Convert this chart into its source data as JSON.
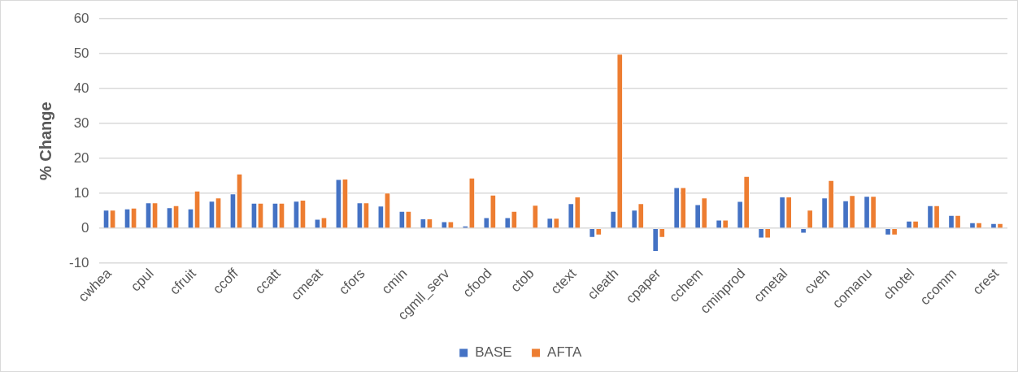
{
  "chart_data": {
    "type": "bar",
    "ylabel": "% Change",
    "categories": [
      "cwhea",
      null,
      "cpul",
      null,
      "cfruit",
      null,
      "ccoff",
      null,
      "ccatt",
      null,
      "cmeat",
      null,
      "cfors",
      null,
      "cmin",
      null,
      "cgmll_serv",
      null,
      "cfood",
      null,
      "ctob",
      null,
      "ctext",
      null,
      "cleath",
      null,
      "cpaper",
      null,
      "cchem",
      null,
      "cminprod",
      null,
      "cmetal",
      null,
      "cveh",
      null,
      "comanu",
      null,
      "chotel",
      null,
      "ccomm",
      null,
      "crest"
    ],
    "series": [
      {
        "name": "BASE",
        "color": "#4472c4",
        "values": [
          5.3,
          5.7,
          7.4,
          6.0,
          5.7,
          7.9,
          10.0,
          7.3,
          7.3,
          7.9,
          2.7,
          14.1,
          7.4,
          6.5,
          5.0,
          2.8,
          2.0,
          0.8,
          3.2,
          3.2,
          null,
          3.0,
          7.2,
          -2.7,
          5.0,
          5.3,
          -6.7,
          11.8,
          6.9,
          2.5,
          7.8,
          -2.9,
          9.1,
          -1.5,
          8.8,
          8.0,
          9.3,
          -2.0,
          2.2,
          6.6,
          3.8,
          1.7,
          1.5
        ]
      },
      {
        "name": "AFTA",
        "color": "#ed7d31",
        "values": [
          5.3,
          5.9,
          7.4,
          6.6,
          10.8,
          8.8,
          15.7,
          7.3,
          7.3,
          8.2,
          3.2,
          14.2,
          7.4,
          10.2,
          5.0,
          2.8,
          2.0,
          14.5,
          9.6,
          5.0,
          6.7,
          3.0,
          9.1,
          -2.0,
          50.0,
          7.2,
          -2.7,
          11.8,
          8.8,
          2.5,
          15.0,
          -2.9,
          9.1,
          5.3,
          13.8,
          9.5,
          9.3,
          -2.0,
          2.2,
          6.6,
          3.8,
          1.7,
          1.5
        ]
      }
    ],
    "ylim": [
      -10,
      60
    ],
    "yticks": [
      -10,
      0,
      10,
      20,
      30,
      40,
      50,
      60
    ],
    "grid": "y",
    "legend": "bottom"
  }
}
